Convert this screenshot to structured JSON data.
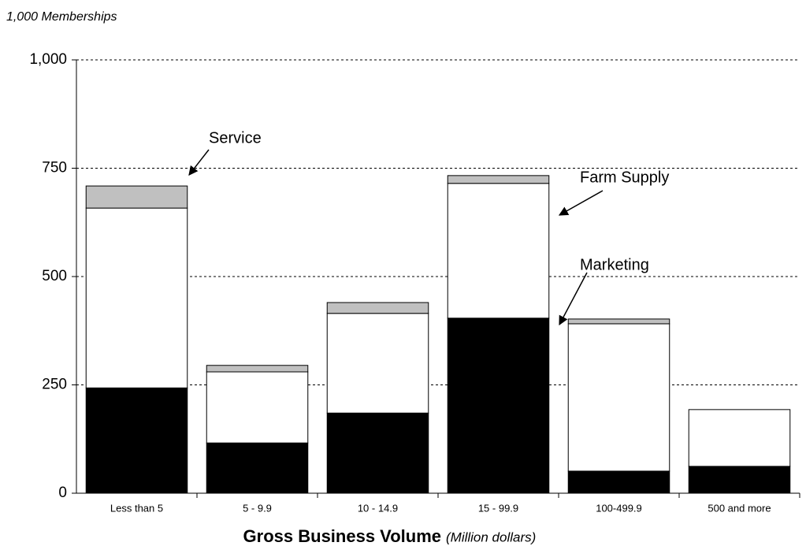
{
  "chart_data": {
    "type": "stacked_bar",
    "ylabel": "1,000 Memberships",
    "xlabel": "Gross Business Volume",
    "xlabel_unit": "(Million dollars)",
    "categories": [
      "Less than 5",
      "5 - 9.9",
      "10 - 14.9",
      "15 - 99.9",
      "100-499.9",
      "500 and more"
    ],
    "series": [
      {
        "name": "Marketing",
        "color": "#000000",
        "values": [
          243,
          116,
          185,
          404,
          51,
          62
        ]
      },
      {
        "name": "Farm Supply",
        "color": "#ffffff",
        "values": [
          415,
          164,
          230,
          311,
          340,
          131
        ]
      },
      {
        "name": "Service",
        "color": "#c0c0c0",
        "values": [
          51,
          15,
          25,
          18,
          11,
          0
        ]
      }
    ],
    "ylim": [
      0,
      1000
    ],
    "yticks": [
      0,
      250,
      500,
      750,
      {
        "value": 1000,
        "label": "1,000"
      }
    ],
    "grid": true
  }
}
